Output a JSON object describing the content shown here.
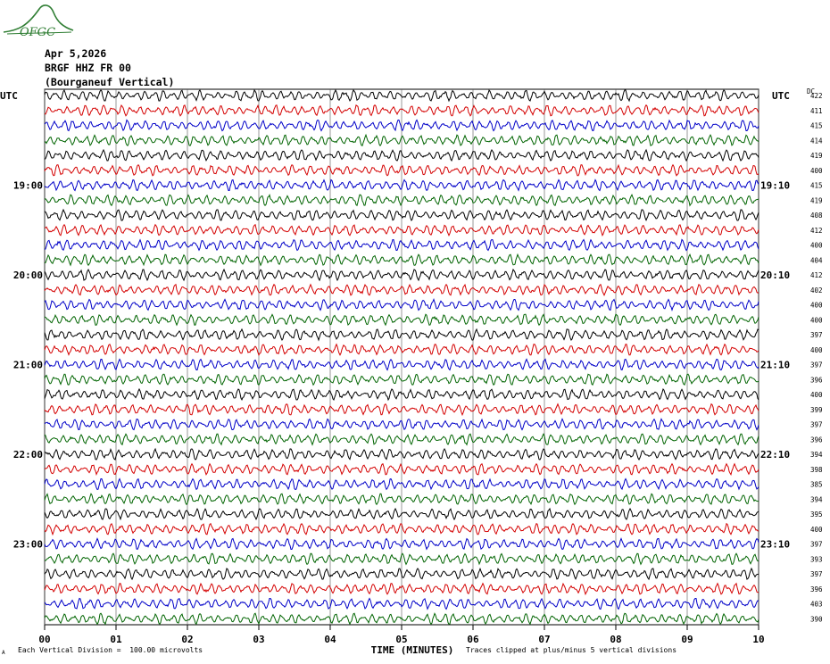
{
  "header": {
    "date": "Apr 5,2026",
    "station": "BRGF HHZ FR 00",
    "description": "(Bourganeuf Vertical)"
  },
  "logo": {
    "text": "OFGC",
    "color": "#2e7d32"
  },
  "footer": {
    "division_note": "Each Vertical Division =  100.00 microvolts",
    "clip_note": "Traces clipped at plus/minus 5 vertical divisions",
    "corner_mark": "A"
  },
  "chart_data": {
    "type": "line",
    "title": "",
    "xlabel": "TIME (MINUTES)",
    "left_axis_label": "UTC",
    "right_axis_label": "UTC",
    "dc_label": "DC",
    "x_ticks": [
      "00",
      "01",
      "02",
      "03",
      "04",
      "05",
      "06",
      "07",
      "08",
      "09",
      "10"
    ],
    "xlim": [
      0,
      10
    ],
    "left_time_labels": [
      {
        "row": 6,
        "label": "19:00"
      },
      {
        "row": 12,
        "label": "20:00"
      },
      {
        "row": 18,
        "label": "21:00"
      },
      {
        "row": 24,
        "label": "22:00"
      },
      {
        "row": 30,
        "label": "23:00"
      }
    ],
    "right_time_labels": [
      {
        "row": 6,
        "label": "19:10"
      },
      {
        "row": 12,
        "label": "20:10"
      },
      {
        "row": 18,
        "label": "21:10"
      },
      {
        "row": 24,
        "label": "22:10"
      },
      {
        "row": 30,
        "label": "23:10"
      }
    ],
    "dc_offsets": [
      "422",
      "411",
      "415",
      "414",
      "419",
      "400",
      "415",
      "419",
      "408",
      "412",
      "400",
      "404",
      "412",
      "402",
      "400",
      "400",
      "397",
      "400",
      "397",
      "396",
      "400",
      "399",
      "397",
      "396",
      "394",
      "398",
      "385",
      "394",
      "395",
      "400",
      "397",
      "393",
      "397",
      "396",
      "403",
      "390"
    ],
    "trace_colors": [
      "#000000",
      "#d40000",
      "#0000c8",
      "#006400"
    ],
    "vertical_divisions_clip": 5,
    "microvolts_per_division": 100.0
  }
}
